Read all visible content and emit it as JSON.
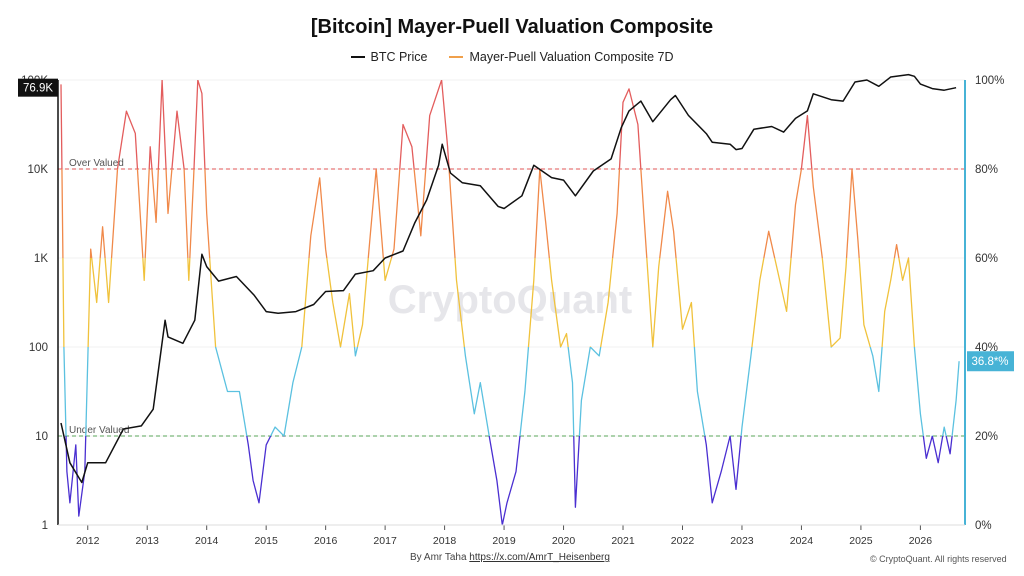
{
  "title": "[Bitcoin] Mayer-Puell Valuation Composite",
  "legend": {
    "btc_label": "BTC Price",
    "mpvc_label": "Mayer-Puell Valuation Composite 7D"
  },
  "badges": {
    "price": "76.9K",
    "mpvc": "36.8*%"
  },
  "reference_lines": {
    "over_label": "Over Valued",
    "under_label": "Under Valued"
  },
  "watermark": "CryptoQuant",
  "footer": {
    "byline_prefix": "By Amr Taha",
    "byline_link": "https://x.com/AmrT_Heisenberg",
    "copyright": "© CryptoQuant. All rights reserved"
  },
  "colors": {
    "btc": "#111111",
    "mpvc_legend": "#f0a04b",
    "over_line": "#e05555",
    "under_line": "#5aa55a",
    "right_axis": "#47b3d6",
    "band_high": "#e35d5d",
    "band_upper": "#f0894a",
    "band_mid": "#f0c23c",
    "band_low": "#5bc1e0",
    "band_extreme_low": "#4a2fd1"
  },
  "chart_data": {
    "type": "line",
    "title": "[Bitcoin] Mayer-Puell Valuation Composite",
    "x_ticks": [
      "2012",
      "2013",
      "2014",
      "2015",
      "2016",
      "2017",
      "2018",
      "2019",
      "2020",
      "2021",
      "2022",
      "2023",
      "2024",
      "2025",
      "2026"
    ],
    "y_left": {
      "scale": "log",
      "range": [
        1,
        100000
      ],
      "ticks": [
        "1",
        "10",
        "100",
        "1K",
        "10K",
        "100K"
      ]
    },
    "y_right": {
      "scale": "linear",
      "range": [
        0,
        100
      ],
      "ticks": [
        "0%",
        "20%",
        "40%",
        "60%",
        "80%",
        "100%"
      ]
    },
    "reference_lines": [
      {
        "label": "Over Valued",
        "value": 80,
        "axis": "right"
      },
      {
        "label": "Under Valued",
        "value": 20,
        "axis": "right"
      }
    ],
    "series": [
      {
        "name": "BTC Price",
        "axis": "left",
        "points": [
          [
            2011.55,
            14
          ],
          [
            2011.7,
            5
          ],
          [
            2011.9,
            3
          ],
          [
            2012.0,
            5
          ],
          [
            2012.3,
            5
          ],
          [
            2012.6,
            12
          ],
          [
            2012.9,
            13
          ],
          [
            2013.1,
            20
          ],
          [
            2013.3,
            200
          ],
          [
            2013.35,
            130
          ],
          [
            2013.6,
            110
          ],
          [
            2013.8,
            200
          ],
          [
            2013.92,
            1100
          ],
          [
            2014.0,
            800
          ],
          [
            2014.2,
            550
          ],
          [
            2014.5,
            620
          ],
          [
            2014.8,
            380
          ],
          [
            2015.0,
            250
          ],
          [
            2015.2,
            240
          ],
          [
            2015.5,
            250
          ],
          [
            2015.8,
            300
          ],
          [
            2016.0,
            420
          ],
          [
            2016.3,
            430
          ],
          [
            2016.5,
            660
          ],
          [
            2016.8,
            720
          ],
          [
            2017.0,
            1000
          ],
          [
            2017.3,
            1200
          ],
          [
            2017.5,
            2500
          ],
          [
            2017.7,
            4500
          ],
          [
            2017.9,
            11000
          ],
          [
            2017.96,
            19000
          ],
          [
            2018.1,
            9000
          ],
          [
            2018.3,
            7000
          ],
          [
            2018.6,
            6500
          ],
          [
            2018.9,
            3800
          ],
          [
            2019.0,
            3600
          ],
          [
            2019.3,
            5000
          ],
          [
            2019.5,
            11000
          ],
          [
            2019.8,
            8000
          ],
          [
            2020.0,
            7500
          ],
          [
            2020.2,
            5000
          ],
          [
            2020.5,
            9500
          ],
          [
            2020.8,
            13000
          ],
          [
            2020.97,
            29000
          ],
          [
            2021.1,
            45000
          ],
          [
            2021.3,
            58000
          ],
          [
            2021.5,
            34000
          ],
          [
            2021.8,
            60000
          ],
          [
            2021.88,
            67000
          ],
          [
            2022.1,
            40000
          ],
          [
            2022.4,
            25000
          ],
          [
            2022.5,
            20000
          ],
          [
            2022.8,
            19000
          ],
          [
            2022.9,
            16500
          ],
          [
            2023.0,
            17000
          ],
          [
            2023.2,
            28000
          ],
          [
            2023.5,
            30000
          ],
          [
            2023.7,
            26000
          ],
          [
            2023.9,
            37000
          ],
          [
            2024.1,
            45000
          ],
          [
            2024.2,
            70000
          ],
          [
            2024.5,
            60000
          ],
          [
            2024.7,
            58000
          ],
          [
            2024.9,
            95000
          ],
          [
            2025.1,
            100000
          ],
          [
            2025.3,
            85000
          ],
          [
            2025.5,
            108000
          ],
          [
            2025.8,
            115000
          ],
          [
            2025.9,
            110000
          ],
          [
            2026.0,
            90000
          ],
          [
            2026.2,
            80000
          ],
          [
            2026.4,
            76900
          ],
          [
            2026.6,
            82000
          ]
        ]
      },
      {
        "name": "Mayer-Puell Valuation Composite 7D",
        "axis": "right",
        "points": [
          [
            2011.55,
            99
          ],
          [
            2011.6,
            40
          ],
          [
            2011.65,
            12
          ],
          [
            2011.7,
            5
          ],
          [
            2011.8,
            18
          ],
          [
            2011.85,
            2
          ],
          [
            2011.95,
            12
          ],
          [
            2012.05,
            62
          ],
          [
            2012.15,
            50
          ],
          [
            2012.25,
            67
          ],
          [
            2012.35,
            50
          ],
          [
            2012.5,
            80
          ],
          [
            2012.65,
            93
          ],
          [
            2012.8,
            88
          ],
          [
            2012.95,
            55
          ],
          [
            2013.05,
            85
          ],
          [
            2013.15,
            68
          ],
          [
            2013.25,
            100
          ],
          [
            2013.35,
            70
          ],
          [
            2013.5,
            93
          ],
          [
            2013.62,
            80
          ],
          [
            2013.7,
            55
          ],
          [
            2013.78,
            78
          ],
          [
            2013.85,
            100
          ],
          [
            2013.92,
            97
          ],
          [
            2014.0,
            70
          ],
          [
            2014.15,
            40
          ],
          [
            2014.35,
            30
          ],
          [
            2014.55,
            30
          ],
          [
            2014.7,
            18
          ],
          [
            2014.78,
            10
          ],
          [
            2014.88,
            5
          ],
          [
            2015.0,
            18
          ],
          [
            2015.15,
            22
          ],
          [
            2015.3,
            20
          ],
          [
            2015.45,
            32
          ],
          [
            2015.6,
            40
          ],
          [
            2015.75,
            65
          ],
          [
            2015.9,
            78
          ],
          [
            2016.0,
            62
          ],
          [
            2016.12,
            50
          ],
          [
            2016.25,
            40
          ],
          [
            2016.4,
            52
          ],
          [
            2016.5,
            38
          ],
          [
            2016.62,
            45
          ],
          [
            2016.75,
            65
          ],
          [
            2016.85,
            80
          ],
          [
            2017.0,
            55
          ],
          [
            2017.15,
            62
          ],
          [
            2017.3,
            90
          ],
          [
            2017.45,
            85
          ],
          [
            2017.6,
            65
          ],
          [
            2017.75,
            92
          ],
          [
            2017.95,
            100
          ],
          [
            2018.05,
            85
          ],
          [
            2018.2,
            55
          ],
          [
            2018.35,
            38
          ],
          [
            2018.5,
            25
          ],
          [
            2018.6,
            32
          ],
          [
            2018.75,
            20
          ],
          [
            2018.88,
            10
          ],
          [
            2018.97,
            0
          ],
          [
            2019.05,
            5
          ],
          [
            2019.2,
            12
          ],
          [
            2019.35,
            30
          ],
          [
            2019.5,
            55
          ],
          [
            2019.6,
            80
          ],
          [
            2019.7,
            68
          ],
          [
            2019.8,
            55
          ],
          [
            2019.95,
            40
          ],
          [
            2020.05,
            43
          ],
          [
            2020.15,
            32
          ],
          [
            2020.2,
            4
          ],
          [
            2020.3,
            28
          ],
          [
            2020.45,
            40
          ],
          [
            2020.6,
            38
          ],
          [
            2020.75,
            50
          ],
          [
            2020.9,
            70
          ],
          [
            2021.0,
            95
          ],
          [
            2021.1,
            98
          ],
          [
            2021.25,
            90
          ],
          [
            2021.35,
            70
          ],
          [
            2021.5,
            40
          ],
          [
            2021.6,
            58
          ],
          [
            2021.75,
            75
          ],
          [
            2021.85,
            66
          ],
          [
            2022.0,
            44
          ],
          [
            2022.15,
            50
          ],
          [
            2022.25,
            30
          ],
          [
            2022.4,
            18
          ],
          [
            2022.5,
            5
          ],
          [
            2022.65,
            12
          ],
          [
            2022.8,
            20
          ],
          [
            2022.9,
            8
          ],
          [
            2023.0,
            22
          ],
          [
            2023.15,
            38
          ],
          [
            2023.3,
            55
          ],
          [
            2023.45,
            66
          ],
          [
            2023.6,
            57
          ],
          [
            2023.75,
            48
          ],
          [
            2023.9,
            72
          ],
          [
            2024.0,
            80
          ],
          [
            2024.1,
            92
          ],
          [
            2024.2,
            76
          ],
          [
            2024.35,
            60
          ],
          [
            2024.5,
            40
          ],
          [
            2024.65,
            42
          ],
          [
            2024.75,
            58
          ],
          [
            2024.85,
            80
          ],
          [
            2024.95,
            64
          ],
          [
            2025.05,
            45
          ],
          [
            2025.2,
            38
          ],
          [
            2025.3,
            30
          ],
          [
            2025.4,
            48
          ],
          [
            2025.5,
            55
          ],
          [
            2025.6,
            63
          ],
          [
            2025.7,
            55
          ],
          [
            2025.8,
            60
          ],
          [
            2025.9,
            40
          ],
          [
            2026.0,
            25
          ],
          [
            2026.1,
            15
          ],
          [
            2026.2,
            20
          ],
          [
            2026.3,
            14
          ],
          [
            2026.4,
            22
          ],
          [
            2026.5,
            16
          ],
          [
            2026.6,
            28
          ],
          [
            2026.65,
            36.8
          ]
        ]
      }
    ]
  }
}
